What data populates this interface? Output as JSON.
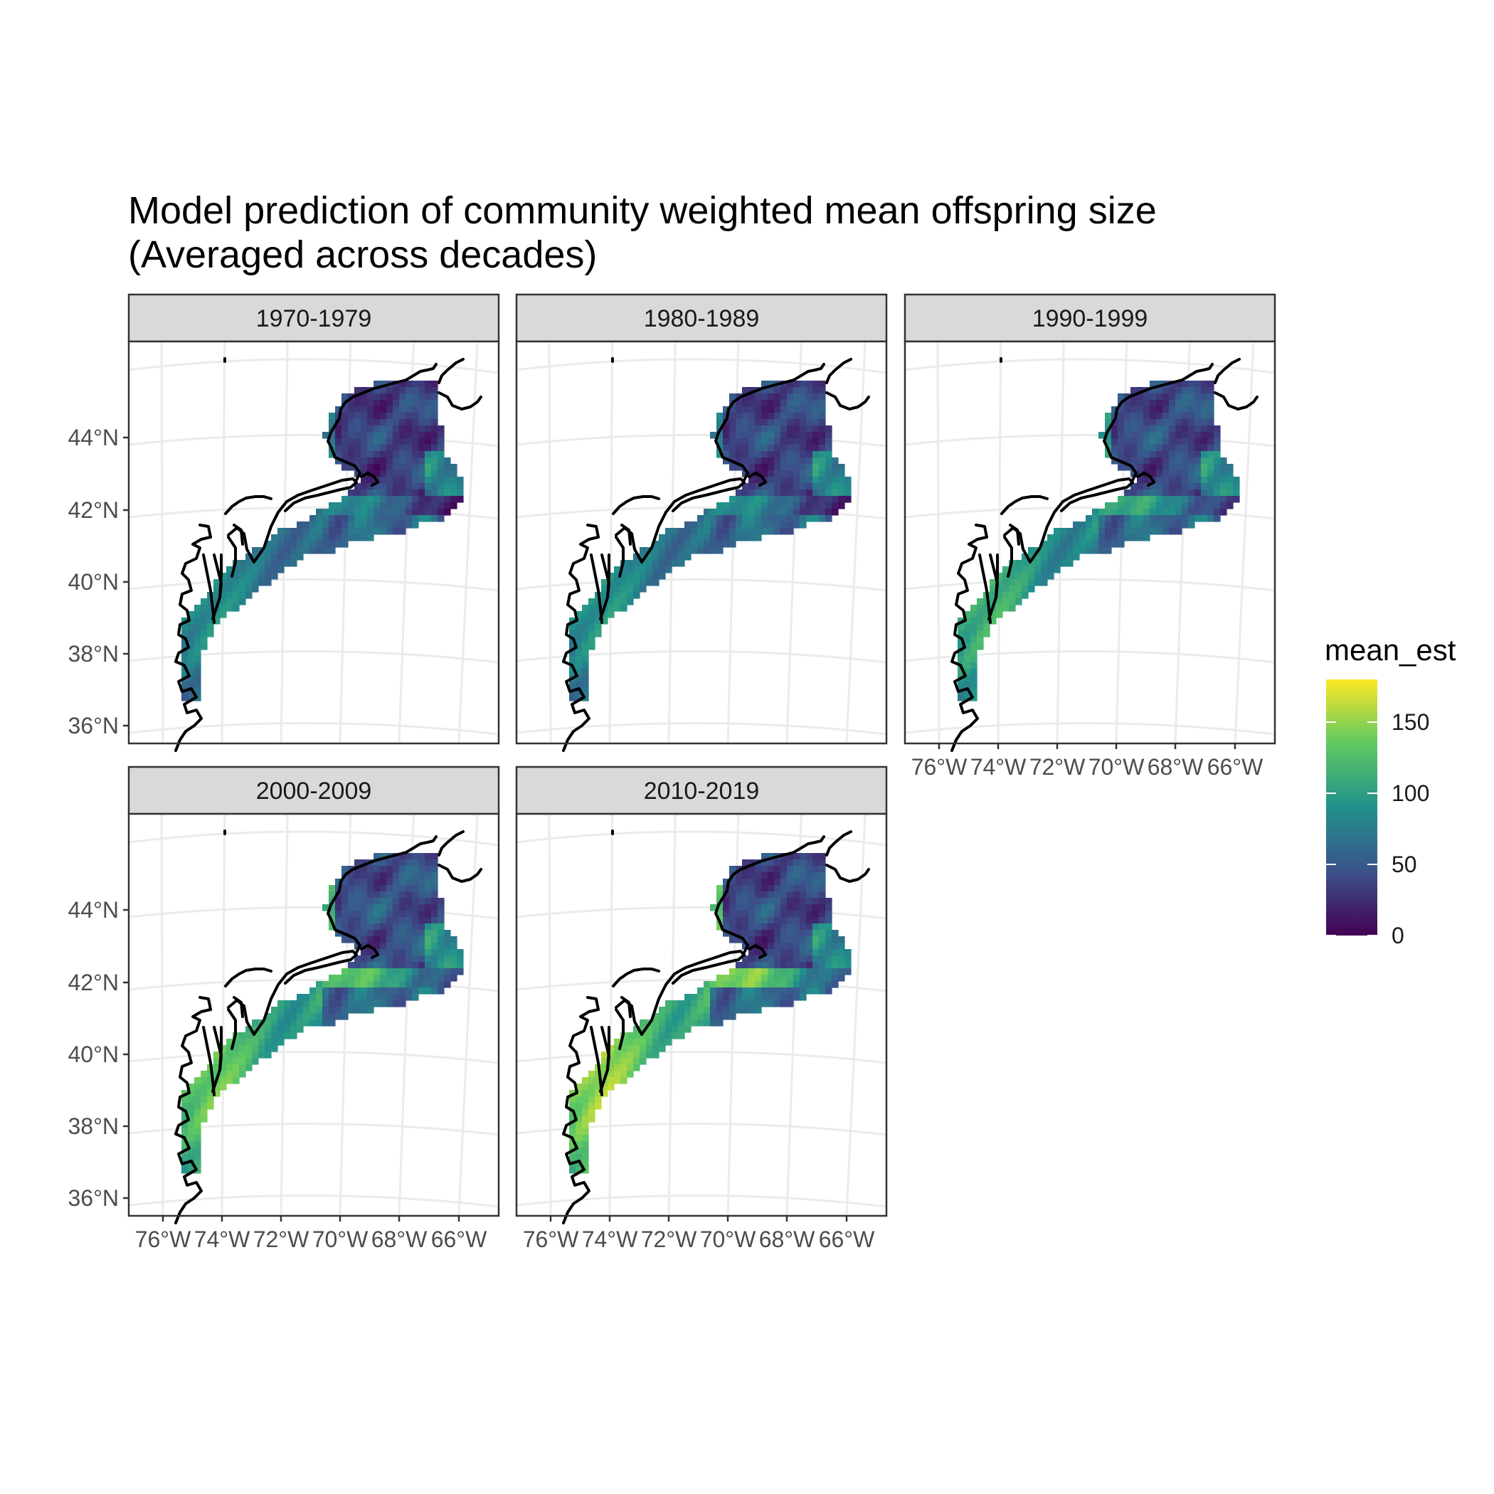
{
  "title": {
    "line1": "Model prediction of community weighted mean offspring size",
    "line2": "(Averaged across decades)"
  },
  "panels": [
    {
      "label": "1970-1979",
      "hot": 0.55,
      "north": 0.35
    },
    {
      "label": "1980-1989",
      "hot": 0.58,
      "north": 0.38
    },
    {
      "label": "1990-1999",
      "hot": 0.72,
      "north": 0.42
    },
    {
      "label": "2000-2009",
      "hot": 0.85,
      "north": 0.45
    },
    {
      "label": "2010-2019",
      "hot": 0.95,
      "north": 0.4
    }
  ],
  "axes": {
    "lat_labels": [
      "44°N",
      "42°N",
      "40°N",
      "38°N",
      "36°N"
    ],
    "lon_labels": [
      "76°W",
      "74°W",
      "72°W",
      "70°W",
      "68°W",
      "66°W"
    ]
  },
  "legend": {
    "title": "mean_est",
    "labels": [
      "150",
      "100",
      "50",
      "0"
    ],
    "range": [
      0,
      180
    ],
    "colors": [
      "#440154",
      "#3b528b",
      "#21918c",
      "#5ec962",
      "#fde725"
    ]
  },
  "chart_data": {
    "type": "heatmap",
    "variable": "mean_est",
    "facets": [
      "1970-1979",
      "1980-1989",
      "1990-1999",
      "2000-2009",
      "2010-2019"
    ],
    "color_scale": "viridis",
    "color_range": [
      0,
      180
    ],
    "legend_breaks": [
      0,
      50,
      100,
      150
    ],
    "x_axis_ticks": [
      "76°W",
      "74°W",
      "72°W",
      "70°W",
      "68°W",
      "66°W"
    ],
    "y_axis_ticks": [
      "44°N",
      "42°N",
      "40°N",
      "38°N",
      "36°N"
    ],
    "legend_position": "right"
  }
}
